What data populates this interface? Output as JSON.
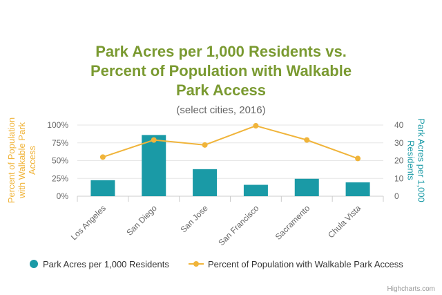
{
  "chart_data": {
    "type": "bar",
    "title_lines": [
      "Park Acres per 1,000 Residents vs.",
      "Percent of Population with Walkable",
      "Park Access"
    ],
    "subtitle": "(select cities, 2016)",
    "categories": [
      "Los Angeles",
      "San Diego",
      "San Jose",
      "San Francisco",
      "Sacramento",
      "Chula Vista"
    ],
    "left_axis": {
      "title_lines": [
        "Percent of Population",
        "with Walkable Park",
        "Access"
      ],
      "ticks": [
        "0%",
        "25%",
        "50%",
        "75%",
        "100%"
      ],
      "range": [
        0,
        100
      ]
    },
    "right_axis": {
      "title_lines": [
        "Park Acres per 1,000",
        "Residents"
      ],
      "ticks": [
        "0",
        "10",
        "20",
        "30",
        "40"
      ],
      "range": [
        0,
        40
      ]
    },
    "series": [
      {
        "name": "Park Acres per 1,000 Residents",
        "type": "bar",
        "axis": "right",
        "color": "#1a9aa6",
        "values": [
          9.0,
          34.4,
          15.2,
          6.4,
          9.8,
          7.8
        ]
      },
      {
        "name": "Percent of Population with Walkable Park Access",
        "type": "line",
        "axis": "left",
        "color": "#f0b43a",
        "values": [
          55,
          79,
          72,
          99,
          79,
          53
        ]
      }
    ],
    "grid": true,
    "legend": "bottom-center",
    "colors": {
      "title": "#7a9a31",
      "left_axis": "#f0b43a",
      "right_axis": "#1a9aa6",
      "grid": "#e6e6e6"
    }
  },
  "credit": "Highcharts.com"
}
